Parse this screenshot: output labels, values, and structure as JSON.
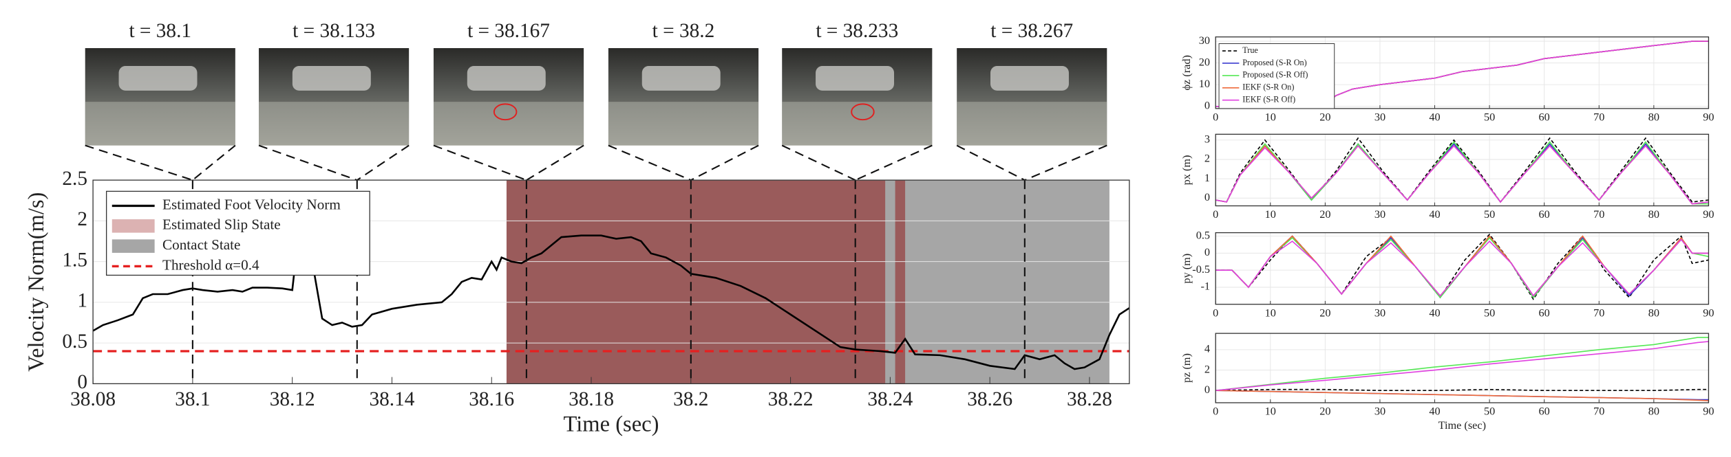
{
  "frames": [
    "t = 38.1",
    "t = 38.133",
    "t = 38.167",
    "t = 38.2",
    "t = 38.233",
    "t = 38.267"
  ],
  "chart_data": [
    {
      "type": "line",
      "xlabel": "Time (sec)",
      "ylabel": "Velocity Norm(m/s)",
      "xlim": [
        38.08,
        38.288
      ],
      "ylim": [
        0,
        2.5
      ],
      "xticks": [
        38.08,
        38.1,
        38.12,
        38.14,
        38.16,
        38.18,
        38.2,
        38.22,
        38.24,
        38.26,
        38.28
      ],
      "yticks": [
        0,
        0.5,
        1,
        1.5,
        2,
        2.5
      ],
      "grid": true,
      "x": [
        38.08,
        38.082,
        38.085,
        38.088,
        38.09,
        38.092,
        38.095,
        38.098,
        38.1,
        38.102,
        38.105,
        38.108,
        38.11,
        38.112,
        38.115,
        38.118,
        38.12,
        38.121,
        38.124,
        38.126,
        38.128,
        38.13,
        38.132,
        38.134,
        38.136,
        38.14,
        38.145,
        38.15,
        38.152,
        38.154,
        38.156,
        38.158,
        38.16,
        38.161,
        38.162,
        38.164,
        38.166,
        38.168,
        38.17,
        38.172,
        38.174,
        38.178,
        38.182,
        38.185,
        38.188,
        38.19,
        38.192,
        38.195,
        38.198,
        38.2,
        38.205,
        38.21,
        38.215,
        38.22,
        38.225,
        38.23,
        38.233,
        38.238,
        38.241,
        38.243,
        38.245,
        38.25,
        38.255,
        38.26,
        38.265,
        38.267,
        38.27,
        38.273,
        38.275,
        38.277,
        38.279,
        38.282,
        38.284,
        38.286,
        38.288
      ],
      "series": [
        {
          "name": "Estimated Foot Velocity Norm",
          "color": "#000000",
          "values": [
            0.65,
            0.72,
            0.78,
            0.85,
            1.05,
            1.1,
            1.1,
            1.15,
            1.17,
            1.15,
            1.13,
            1.15,
            1.13,
            1.18,
            1.18,
            1.17,
            1.15,
            1.7,
            1.5,
            0.8,
            0.72,
            0.75,
            0.7,
            0.72,
            0.85,
            0.92,
            0.97,
            1.0,
            1.1,
            1.25,
            1.3,
            1.28,
            1.5,
            1.4,
            1.55,
            1.5,
            1.48,
            1.55,
            1.6,
            1.7,
            1.8,
            1.82,
            1.82,
            1.78,
            1.8,
            1.75,
            1.6,
            1.55,
            1.45,
            1.35,
            1.3,
            1.2,
            1.05,
            0.85,
            0.65,
            0.45,
            0.42,
            0.4,
            0.38,
            0.55,
            0.36,
            0.35,
            0.3,
            0.22,
            0.18,
            0.35,
            0.3,
            0.35,
            0.25,
            0.18,
            0.2,
            0.3,
            0.6,
            0.85,
            0.93
          ]
        }
      ],
      "regions": [
        {
          "name": "Estimated Slip State",
          "color": "#8b0000",
          "spans": [
            [
              38.163,
              38.239
            ],
            [
              38.241,
              38.243
            ]
          ]
        },
        {
          "name": "Contact State",
          "color": "#a6a6a6",
          "spans": [
            [
              38.163,
              38.284
            ]
          ]
        }
      ],
      "threshold": {
        "name": "Threshold α=0.4",
        "value": 0.4,
        "color": "#e52020"
      },
      "markers": [
        38.1,
        38.133,
        38.167,
        38.2,
        38.233,
        38.267
      ]
    },
    {
      "type": "line",
      "ylabel": "ϕz (rad)",
      "xlim": [
        0,
        90
      ],
      "ylim": [
        -1,
        32
      ],
      "xticks": [
        0,
        10,
        20,
        30,
        40,
        50,
        60,
        70,
        80,
        90
      ],
      "yticks": [
        0,
        10,
        20,
        30
      ],
      "grid": true,
      "x": [
        0,
        10,
        20,
        22,
        25,
        30,
        40,
        45,
        55,
        60,
        70,
        80,
        87,
        90
      ],
      "series": [
        {
          "name": "True",
          "color": "#000000",
          "dashed": true,
          "values": [
            0,
            0,
            1,
            5,
            8,
            10,
            13,
            16,
            19,
            22,
            25,
            28,
            30,
            30
          ]
        },
        {
          "name": "Proposed (S-R On)",
          "color": "#3b3bd0",
          "values": [
            0,
            0,
            1,
            5,
            8,
            10,
            13,
            16,
            19,
            22,
            25,
            28,
            30,
            30
          ]
        },
        {
          "name": "Proposed (S-R Off)",
          "color": "#55e855",
          "values": [
            0,
            0,
            1,
            5,
            8,
            10,
            13,
            16,
            19,
            22,
            25,
            28,
            30,
            30
          ]
        },
        {
          "name": "IEKF (S-R On)",
          "color": "#ee6a3a",
          "values": [
            0,
            0,
            1,
            5,
            8,
            10,
            13,
            16,
            19,
            22,
            25,
            28,
            30,
            30
          ]
        },
        {
          "name": "IEKF (S-R Off)",
          "color": "#e040e0",
          "values": [
            0,
            0,
            1,
            5,
            8,
            10,
            13,
            16,
            19,
            22,
            25,
            28,
            30,
            30
          ]
        }
      ]
    },
    {
      "type": "line",
      "ylabel": "px (m)",
      "xlim": [
        0,
        90
      ],
      "ylim": [
        -0.4,
        3.3
      ],
      "xticks": [
        0,
        10,
        20,
        30,
        40,
        50,
        60,
        70,
        80,
        90
      ],
      "yticks": [
        0,
        1,
        2,
        3
      ],
      "grid": true,
      "x": [
        0,
        2,
        4.5,
        9,
        13.5,
        17.5,
        22,
        26,
        30.5,
        35,
        39,
        43.5,
        48,
        52,
        56.5,
        61,
        65.5,
        70,
        74,
        78.5,
        83,
        87,
        90
      ],
      "series": [
        {
          "color": "#000000",
          "dashed": true,
          "values": [
            -0.1,
            -0.2,
            1.3,
            3.0,
            1.4,
            -0.1,
            1.4,
            3.1,
            1.4,
            -0.1,
            1.4,
            3.0,
            1.4,
            -0.2,
            1.4,
            3.1,
            1.4,
            -0.1,
            1.4,
            3.1,
            1.3,
            -0.2,
            -0.1
          ]
        },
        {
          "color": "#3b3bd0",
          "values": [
            -0.1,
            -0.2,
            1.2,
            2.7,
            1.3,
            -0.1,
            1.3,
            2.8,
            1.3,
            -0.1,
            1.3,
            2.8,
            1.3,
            -0.2,
            1.3,
            2.8,
            1.3,
            -0.1,
            1.3,
            2.8,
            1.2,
            -0.3,
            -0.3
          ]
        },
        {
          "color": "#55e855",
          "values": [
            -0.1,
            -0.2,
            1.2,
            2.8,
            1.3,
            -0.1,
            1.3,
            2.8,
            1.3,
            -0.1,
            1.3,
            2.9,
            1.3,
            -0.2,
            1.3,
            2.9,
            1.3,
            -0.1,
            1.3,
            2.9,
            1.2,
            -0.3,
            -0.3
          ]
        },
        {
          "color": "#ee6a3a",
          "values": [
            -0.1,
            -0.2,
            1.2,
            2.7,
            1.3,
            0,
            1.3,
            2.7,
            1.3,
            -0.1,
            1.3,
            2.7,
            1.3,
            -0.2,
            1.3,
            2.7,
            1.3,
            -0.1,
            1.3,
            2.7,
            1.2,
            -0.3,
            -0.2
          ]
        },
        {
          "color": "#e040e0",
          "values": [
            -0.1,
            -0.2,
            1.2,
            2.6,
            1.3,
            0,
            1.3,
            2.7,
            1.3,
            -0.1,
            1.3,
            2.7,
            1.3,
            -0.2,
            1.3,
            2.7,
            1.3,
            -0.1,
            1.3,
            2.7,
            1.2,
            -0.3,
            -0.2
          ]
        }
      ]
    },
    {
      "type": "line",
      "ylabel": "py (m)",
      "xlim": [
        0,
        90
      ],
      "ylim": [
        -1.5,
        0.6
      ],
      "xticks": [
        0,
        10,
        20,
        30,
        40,
        50,
        60,
        70,
        80,
        90
      ],
      "yticks": [
        -1,
        -0.5,
        0,
        0.5
      ],
      "grid": true,
      "x": [
        0,
        3,
        6,
        10,
        14,
        18.5,
        23,
        27.5,
        32,
        36.5,
        41,
        45.5,
        50,
        54,
        58,
        62.5,
        67,
        71,
        75.5,
        80,
        85,
        87,
        90
      ],
      "series": [
        {
          "color": "#000000",
          "dashed": true,
          "values": [
            -0.5,
            -0.5,
            -1.0,
            -0.2,
            0.5,
            -0.3,
            -1.2,
            -0.1,
            0.45,
            -0.4,
            -1.3,
            -0.2,
            0.55,
            -0.3,
            -1.35,
            -0.3,
            0.5,
            -0.5,
            -1.3,
            -0.2,
            0.5,
            -0.3,
            -0.2
          ]
        },
        {
          "color": "#3b3bd0",
          "values": [
            -0.5,
            -0.5,
            -1.0,
            -0.1,
            0.5,
            -0.3,
            -1.2,
            -0.3,
            0.45,
            -0.4,
            -1.3,
            -0.4,
            0.5,
            -0.3,
            -1.3,
            -0.4,
            0.45,
            -0.4,
            -1.25,
            -0.5,
            0.45,
            0,
            0
          ]
        },
        {
          "color": "#55e855",
          "values": [
            -0.5,
            -0.5,
            -1.0,
            -0.1,
            0.45,
            -0.3,
            -1.2,
            -0.3,
            0.4,
            -0.4,
            -1.3,
            -0.4,
            0.45,
            -0.3,
            -1.3,
            -0.4,
            0.4,
            -0.4,
            -1.2,
            -0.5,
            0.4,
            0,
            -0.1
          ]
        },
        {
          "color": "#ee6a3a",
          "values": [
            -0.5,
            -0.5,
            -1.0,
            -0.1,
            0.5,
            -0.3,
            -1.2,
            -0.3,
            0.5,
            -0.4,
            -1.25,
            -0.4,
            0.5,
            -0.3,
            -1.25,
            -0.4,
            0.5,
            -0.4,
            -1.2,
            -0.5,
            0.45,
            0,
            0
          ]
        },
        {
          "color": "#e040e0",
          "values": [
            -0.5,
            -0.5,
            -1.0,
            -0.1,
            0.35,
            -0.3,
            -1.2,
            -0.3,
            0.3,
            -0.4,
            -1.25,
            -0.4,
            0.35,
            -0.3,
            -1.25,
            -0.4,
            0.3,
            -0.4,
            -1.2,
            -0.5,
            0.4,
            0,
            0
          ]
        }
      ]
    },
    {
      "type": "line",
      "xlabel": "Time (sec)",
      "ylabel": "pz (m)",
      "xlim": [
        0,
        90
      ],
      "ylim": [
        -1.2,
        5.6
      ],
      "xticks": [
        0,
        10,
        20,
        30,
        40,
        50,
        60,
        70,
        80,
        90
      ],
      "yticks": [
        0,
        2,
        4
      ],
      "grid": true,
      "x": [
        0,
        10,
        20,
        30,
        40,
        50,
        60,
        70,
        80,
        88,
        90
      ],
      "series": [
        {
          "color": "#000000",
          "dashed": true,
          "values": [
            0,
            0.1,
            0.1,
            0,
            0,
            0.1,
            0,
            0,
            0,
            0.1,
            0.1
          ]
        },
        {
          "color": "#3b3bd0",
          "values": [
            0,
            -0.1,
            -0.2,
            -0.3,
            -0.4,
            -0.5,
            -0.6,
            -0.7,
            -0.8,
            -0.9,
            -0.9
          ]
        },
        {
          "color": "#55e855",
          "values": [
            0,
            0.6,
            1.2,
            1.7,
            2.3,
            2.8,
            3.4,
            4.0,
            4.5,
            5.2,
            5.2
          ]
        },
        {
          "color": "#ee6a3a",
          "values": [
            0,
            -0.1,
            -0.2,
            -0.3,
            -0.4,
            -0.5,
            -0.6,
            -0.7,
            -0.8,
            -0.95,
            -1.0
          ]
        },
        {
          "color": "#e040e0",
          "values": [
            0,
            0.55,
            1.0,
            1.5,
            2.0,
            2.6,
            3.1,
            3.6,
            4.1,
            4.7,
            4.8
          ]
        }
      ]
    }
  ]
}
